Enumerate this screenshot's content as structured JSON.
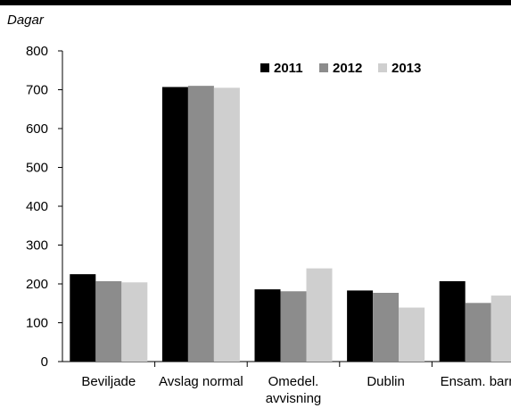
{
  "chart_data": {
    "type": "bar",
    "unit_label": "Dagar",
    "categories": [
      "Beviljade",
      "Avslag normal",
      "Omedel. avvisning",
      "Dublin",
      "Ensam. barn"
    ],
    "category_lines": [
      [
        "Beviljade"
      ],
      [
        "Avslag normal"
      ],
      [
        "Omedel.",
        "avvisning"
      ],
      [
        "Dublin"
      ],
      [
        "Ensam. barn"
      ]
    ],
    "series": [
      {
        "name": "2011",
        "color": "#000000",
        "values": [
          225,
          707,
          186,
          183,
          207
        ]
      },
      {
        "name": "2012",
        "color": "#8c8c8c",
        "values": [
          207,
          710,
          181,
          177,
          151
        ]
      },
      {
        "name": "2013",
        "color": "#cfcfcf",
        "values": [
          204,
          705,
          240,
          139,
          170
        ]
      }
    ],
    "ylim": [
      0,
      800
    ],
    "yticks": [
      0,
      100,
      200,
      300,
      400,
      500,
      600,
      700,
      800
    ],
    "grid": false,
    "legend_position": "top-right"
  }
}
